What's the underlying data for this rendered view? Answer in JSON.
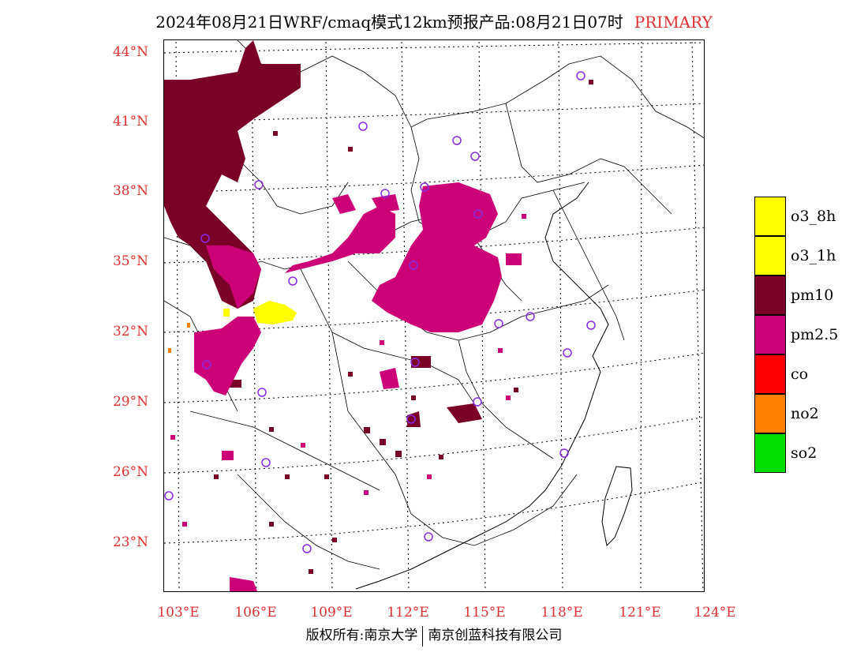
{
  "title": {
    "main": "2024年08月21日WRF/cmaq模式12km预报产品:08月21日07时",
    "tag": "PRIMARY",
    "tag_color": "#e03030"
  },
  "axes": {
    "lat_labels": [
      "44°N",
      "41°N",
      "38°N",
      "35°N",
      "32°N",
      "29°N",
      "26°N",
      "23°N"
    ],
    "lon_labels": [
      "103°E",
      "106°E",
      "109°E",
      "112°E",
      "115°E",
      "118°E",
      "121°E",
      "124°E"
    ],
    "label_color": "#e03030"
  },
  "legend": {
    "items": [
      {
        "label": "o3_8h",
        "color": "#ffff00"
      },
      {
        "label": "o3_1h",
        "color": "#ffff00"
      },
      {
        "label": "pm10",
        "color": "#7a0026"
      },
      {
        "label": "pm2.5",
        "color": "#cc0077"
      },
      {
        "label": "co",
        "color": "#ff0000"
      },
      {
        "label": "no2",
        "color": "#ff7f00"
      },
      {
        "label": "so2",
        "color": "#00dd00"
      }
    ]
  },
  "footer": {
    "left": "版权所有:南京大学",
    "right": "南京创蓝科技有限公司"
  },
  "colors": {
    "pm10": "#7a0026",
    "pm25": "#cc0077",
    "o3": "#ffff00",
    "station": "#8a2be2"
  }
}
